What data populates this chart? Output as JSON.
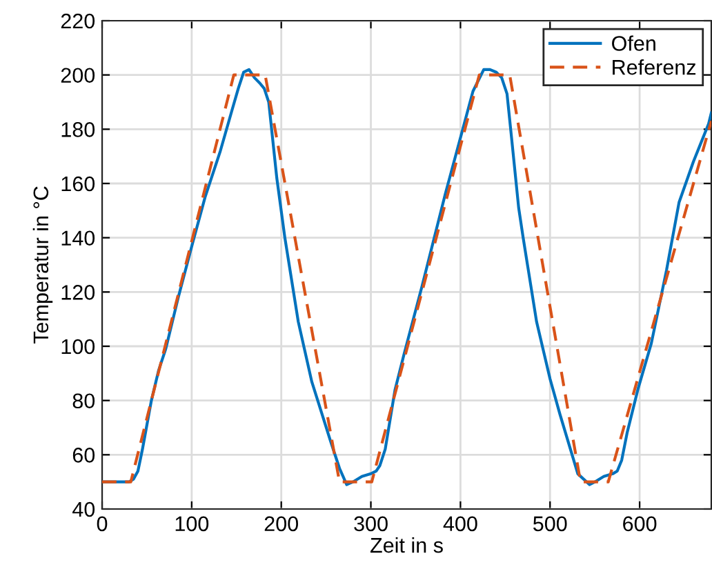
{
  "chart_data": {
    "type": "line",
    "xlabel": "Zeit in s",
    "ylabel": "Temperatur in °C",
    "xlim": [
      0,
      680
    ],
    "ylim": [
      40,
      220
    ],
    "xticks": [
      0,
      100,
      200,
      300,
      400,
      500,
      600
    ],
    "yticks": [
      40,
      60,
      80,
      100,
      120,
      140,
      160,
      180,
      200,
      220
    ],
    "grid": true,
    "legend": "top right",
    "series": [
      {
        "name": "Ofen",
        "color": "#0072bd",
        "line_style": "solid",
        "x": [
          0,
          30,
          35,
          40,
          45,
          55,
          63,
          71,
          85,
          101,
          115,
          132,
          145,
          152,
          158,
          164,
          170,
          176,
          181,
          186,
          195,
          204,
          219,
          234,
          255,
          265,
          273,
          280,
          290,
          300,
          306,
          310,
          316,
          327,
          337,
          357,
          383,
          414,
          426,
          433,
          440,
          446,
          452,
          457,
          465,
          470,
          485,
          500,
          511,
          531,
          544,
          550,
          560,
          570,
          575,
          580,
          586,
          598,
          613,
          630,
          644,
          660,
          677,
          680
        ],
        "values": [
          50,
          50,
          51,
          54,
          62,
          80,
          91,
          99,
          118,
          138,
          155,
          172,
          187,
          195,
          201,
          202,
          199,
          197,
          195,
          190,
          162,
          140,
          109,
          87,
          65,
          55,
          49,
          50,
          52,
          53,
          54,
          56,
          62,
          84,
          97,
          122,
          156,
          194,
          202,
          202,
          201,
          199,
          193,
          177,
          151,
          140,
          109,
          88,
          75,
          53,
          49,
          50,
          52,
          53,
          54,
          58,
          68,
          84,
          101,
          128,
          153,
          168,
          182,
          186
        ]
      },
      {
        "name": "Referenz",
        "color": "#d95319",
        "line_style": "dashed",
        "x": [
          0,
          32,
          147,
          182,
          265,
          301,
          421,
          455,
          534,
          565,
          680
        ],
        "values": [
          50,
          50,
          200,
          200,
          50,
          50,
          200,
          200,
          50,
          50,
          183
        ]
      }
    ]
  }
}
